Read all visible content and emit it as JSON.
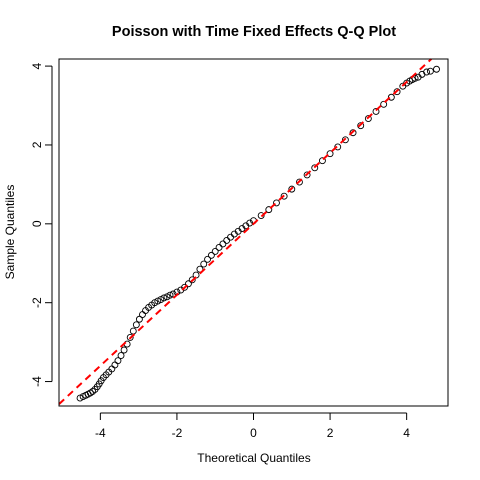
{
  "chart_data": {
    "type": "scatter",
    "title": "Poisson with Time Fixed Effects Q-Q Plot",
    "xlabel": "Theoretical Quantiles",
    "ylabel": "Sample Quantiles",
    "xlim": [
      -5.08,
      5.08
    ],
    "ylim": [
      -4.62,
      4.18
    ],
    "x_ticks": [
      -4,
      -2,
      0,
      2,
      4
    ],
    "y_ticks": [
      -4,
      -2,
      0,
      2,
      4
    ],
    "grid": false,
    "reference_line": {
      "intercept": 0,
      "slope": 0.9,
      "color": "#ff0000",
      "style": "dashed"
    },
    "series": [
      {
        "marker": "open-circle",
        "color": "#000000",
        "x": [
          -4.53,
          -4.45,
          -4.38,
          -4.32,
          -4.26,
          -4.2,
          -4.14,
          -4.08,
          -4.03,
          -3.98,
          -3.92,
          -3.85,
          -3.78,
          -3.7,
          -3.62,
          -3.54,
          -3.46,
          -3.38,
          -3.3,
          -3.22,
          -3.14,
          -3.06,
          -2.98,
          -2.9,
          -2.82,
          -2.74,
          -2.66,
          -2.58,
          -2.5,
          -2.42,
          -2.34,
          -2.26,
          -2.18,
          -2.1,
          -2.0,
          -1.9,
          -1.8,
          -1.7,
          -1.6,
          -1.5,
          -1.4,
          -1.3,
          -1.2,
          -1.1,
          -1.0,
          -0.9,
          -0.8,
          -0.7,
          -0.6,
          -0.5,
          -0.4,
          -0.3,
          -0.2,
          -0.1,
          0.0,
          0.2,
          0.4,
          0.6,
          0.8,
          1.0,
          1.2,
          1.4,
          1.6,
          1.8,
          2.0,
          2.2,
          2.4,
          2.6,
          2.8,
          3.0,
          3.2,
          3.4,
          3.6,
          3.75,
          3.9,
          4.0,
          4.08,
          4.15,
          4.22,
          4.3,
          4.4,
          4.52,
          4.62,
          4.78
        ],
        "y": [
          -4.42,
          -4.38,
          -4.35,
          -4.32,
          -4.29,
          -4.25,
          -4.2,
          -4.13,
          -4.06,
          -3.98,
          -3.9,
          -3.83,
          -3.76,
          -3.68,
          -3.58,
          -3.47,
          -3.34,
          -3.2,
          -3.05,
          -2.88,
          -2.72,
          -2.56,
          -2.42,
          -2.3,
          -2.2,
          -2.12,
          -2.06,
          -2.0,
          -1.96,
          -1.92,
          -1.88,
          -1.85,
          -1.81,
          -1.78,
          -1.73,
          -1.68,
          -1.61,
          -1.52,
          -1.42,
          -1.3,
          -1.15,
          -1.02,
          -0.9,
          -0.8,
          -0.7,
          -0.6,
          -0.51,
          -0.42,
          -0.34,
          -0.26,
          -0.19,
          -0.12,
          -0.05,
          0.02,
          0.08,
          0.21,
          0.36,
          0.53,
          0.7,
          0.88,
          1.06,
          1.24,
          1.42,
          1.6,
          1.78,
          1.95,
          2.13,
          2.31,
          2.49,
          2.67,
          2.85,
          3.03,
          3.21,
          3.35,
          3.49,
          3.57,
          3.62,
          3.66,
          3.69,
          3.72,
          3.79,
          3.85,
          3.87,
          3.92
        ]
      }
    ]
  }
}
